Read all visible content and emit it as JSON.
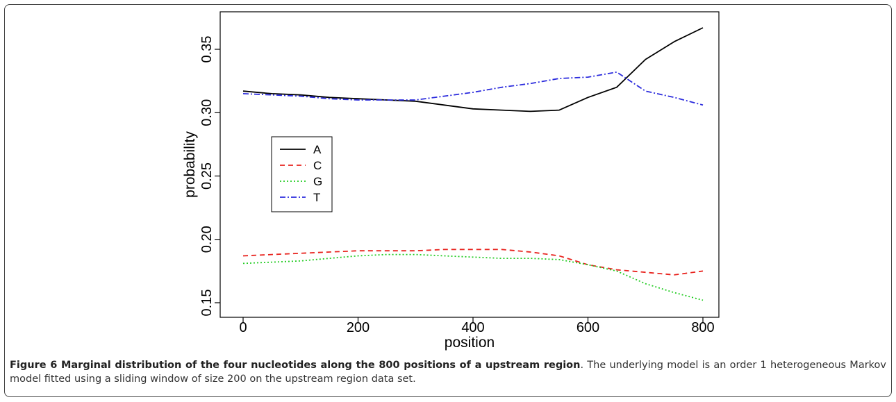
{
  "chart_data": {
    "type": "line",
    "xlabel": "position",
    "ylabel": "probability",
    "xlim": [
      0,
      800
    ],
    "ylim": [
      0.15,
      0.365
    ],
    "xticks": [
      0,
      200,
      400,
      600,
      800
    ],
    "yticks": [
      0.15,
      0.2,
      0.25,
      0.3,
      0.35
    ],
    "xtick_labels": [
      "0",
      "200",
      "400",
      "600",
      "800"
    ],
    "ytick_labels": [
      "0.15",
      "0.20",
      "0.25",
      "0.30",
      "0.35"
    ],
    "grid": false,
    "legend_position": "left-middle",
    "series": [
      {
        "name": "A",
        "color": "#000000",
        "style": "solid",
        "x": [
          0,
          50,
          100,
          150,
          200,
          250,
          300,
          350,
          400,
          450,
          500,
          550,
          600,
          650,
          700,
          750,
          800
        ],
        "y": [
          0.317,
          0.315,
          0.314,
          0.312,
          0.311,
          0.31,
          0.309,
          0.306,
          0.303,
          0.302,
          0.301,
          0.302,
          0.312,
          0.32,
          0.342,
          0.356,
          0.367
        ]
      },
      {
        "name": "C",
        "color": "#e8231e",
        "style": "dashed",
        "x": [
          0,
          50,
          100,
          150,
          200,
          250,
          300,
          350,
          400,
          450,
          500,
          550,
          600,
          650,
          700,
          750,
          800
        ],
        "y": [
          0.187,
          0.188,
          0.189,
          0.19,
          0.191,
          0.191,
          0.191,
          0.192,
          0.192,
          0.192,
          0.19,
          0.187,
          0.18,
          0.176,
          0.174,
          0.172,
          0.175
        ]
      },
      {
        "name": "G",
        "color": "#22cc22",
        "style": "dotted",
        "x": [
          0,
          50,
          100,
          150,
          200,
          250,
          300,
          350,
          400,
          450,
          500,
          550,
          600,
          650,
          700,
          750,
          800
        ],
        "y": [
          0.181,
          0.182,
          0.183,
          0.185,
          0.187,
          0.188,
          0.188,
          0.187,
          0.186,
          0.185,
          0.185,
          0.184,
          0.18,
          0.175,
          0.165,
          0.158,
          0.152
        ]
      },
      {
        "name": "T",
        "color": "#2b2bdd",
        "style": "dashdot",
        "x": [
          0,
          50,
          100,
          150,
          200,
          250,
          300,
          350,
          400,
          450,
          500,
          550,
          600,
          650,
          700,
          750,
          800
        ],
        "y": [
          0.315,
          0.314,
          0.313,
          0.311,
          0.31,
          0.31,
          0.31,
          0.313,
          0.316,
          0.32,
          0.323,
          0.327,
          0.328,
          0.332,
          0.317,
          0.312,
          0.306
        ]
      }
    ]
  },
  "caption": {
    "label": "Figure 6 Marginal distribution of the four nucleotides along the 800 positions of a upstream region",
    "text": ". The underlying model is an order 1 heterogeneous Markov model fitted using a sliding window of size 200 on the upstream region data set."
  }
}
